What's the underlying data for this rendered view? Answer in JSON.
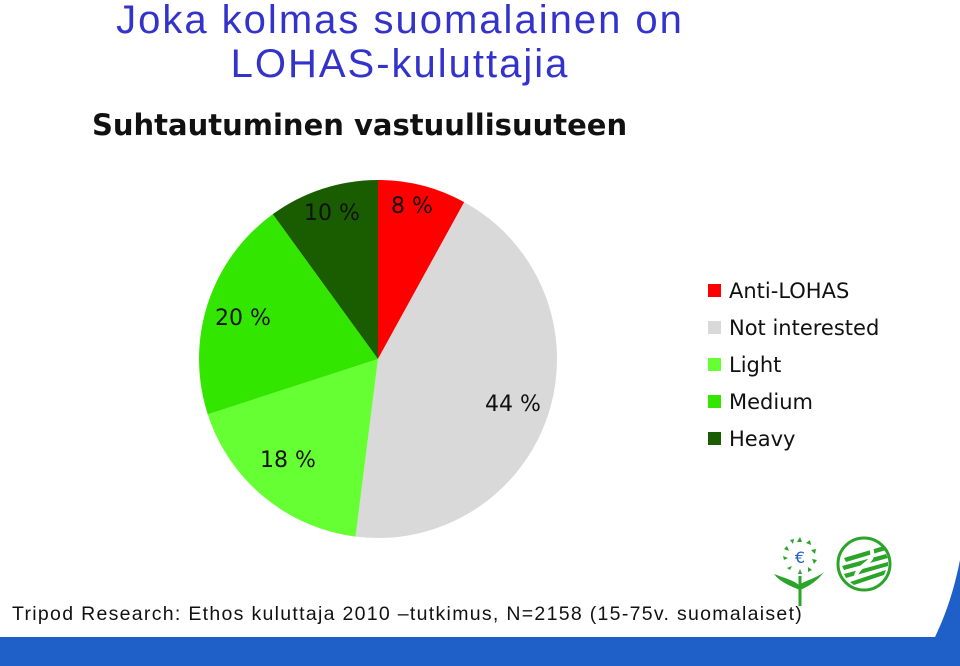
{
  "header": {
    "title_line1": "Joka kolmas suomalainen on",
    "title_line2": "LOHAS-kuluttajia",
    "subtitle": "Suhtautuminen vastuullisuuteen"
  },
  "chart_data": {
    "type": "pie",
    "title": "Suhtautuminen vastuullisuuteen",
    "slices": [
      {
        "name": "Anti-LOHAS",
        "value": 8,
        "label": "8 %",
        "color": "#ff0000"
      },
      {
        "name": "Not interested",
        "value": 44,
        "label": "44 %",
        "color": "#d9d9d9"
      },
      {
        "name": "Light",
        "value": 18,
        "label": "18 %",
        "color": "#66ff33"
      },
      {
        "name": "Medium",
        "value": 20,
        "label": "20 %",
        "color": "#33e600"
      },
      {
        "name": "Heavy",
        "value": 10,
        "label": "10 %",
        "color": "#1a5c00"
      }
    ],
    "legend_position": "right"
  },
  "footer": {
    "source": "Tripod Research: Ethos kuluttaja 2010 –tutkimus, N=2158 (15-75v. suomalaiset)"
  },
  "colors": {
    "title": "#3333cc",
    "band": "#1f5fc8"
  }
}
